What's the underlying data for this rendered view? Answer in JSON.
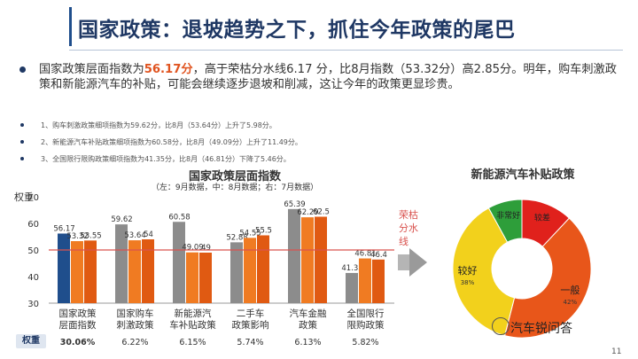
{
  "title": "国家政策：退坡趋势之下，抓住今年政策的尾巴",
  "main_text": {
    "prefix": "国家政策层面指数为",
    "highlight": "56.17分",
    "rest": "，高于荣枯分水线6.17 分，比8月指数（53.32分）高2.85分。明年，购车刺激政策和新能源汽车的补贴，可能会继续逐步退坡和削减，这让今年的政策更显珍贵。"
  },
  "sub_items": [
    "1、购车刺激政策细项指数为59.62分，比8月（53.64分）上升了5.98分。",
    "2、新能源汽车补贴政策细项指数为60.58分，比8月（49.09分）上升了11.49分。",
    "3、全国限行限购政策细项指数为41.35分，比8月（46.81分）下降了5.46分。"
  ],
  "weight_label": "权重",
  "watermark": "汽车锐问答",
  "page_number": "11",
  "pie_title": "新能源汽车补贴政策",
  "colors": {
    "current_highlight": "#1f4e8c",
    "current": "#8c8c8c",
    "last_month": "#f07b22",
    "two_months": "#e05a12",
    "threshold": "#d9534f"
  },
  "chart_data": [
    {
      "type": "bar",
      "title": "国家政策层面指数",
      "subtitle": "（左：9月数据，中：8月数据；右：7月数据）",
      "ylabel": "权重",
      "ylim": [
        30,
        70
      ],
      "yticks": [
        30,
        40,
        50,
        60,
        70
      ],
      "grid": false,
      "categories": [
        "国家政策\n层面指数",
        "国家购车\n刺激政策",
        "新能源汽\n车补贴政策",
        "二手车\n政策影响",
        "汽车金融\n政策",
        "全国限行\n限购政策"
      ],
      "weights": [
        "30.06%",
        "6.22%",
        "6.15%",
        "5.74%",
        "6.13%",
        "5.82%"
      ],
      "series": [
        {
          "name": "9月",
          "values": [
            56.17,
            59.62,
            60.58,
            52.88,
            65.39,
            41.35
          ]
        },
        {
          "name": "8月",
          "values": [
            53.32,
            53.64,
            49.09,
            54.55,
            62.29,
            46.81
          ]
        },
        {
          "name": "7月",
          "values": [
            53.55,
            54,
            49,
            55.5,
            62.5,
            46.4
          ]
        }
      ],
      "value_labels": [
        [
          "56.17",
          "53.32",
          "53.55"
        ],
        [
          "59.62",
          "53.64",
          "54"
        ],
        [
          "60.58",
          "49.09",
          "49"
        ],
        [
          "52.88",
          "54.55",
          "55.5"
        ],
        [
          "65.39",
          "62.29",
          "62.5"
        ],
        [
          "41.35",
          "46.81",
          "46.4"
        ]
      ],
      "threshold": {
        "value": 50,
        "label": "荣枯分水线"
      }
    },
    {
      "type": "pie",
      "title": "新能源汽车补贴政策",
      "slices": [
        {
          "label": "较差",
          "value": 12,
          "color": "#e0211c"
        },
        {
          "label": "一般",
          "value": 42,
          "color": "#e8561a",
          "pct_label": "42%"
        },
        {
          "label": "较好",
          "value": 38,
          "color": "#f2d11c",
          "pct_label": "38%"
        },
        {
          "label": "非常好",
          "value": 8,
          "color": "#2e9e3a"
        }
      ]
    }
  ]
}
